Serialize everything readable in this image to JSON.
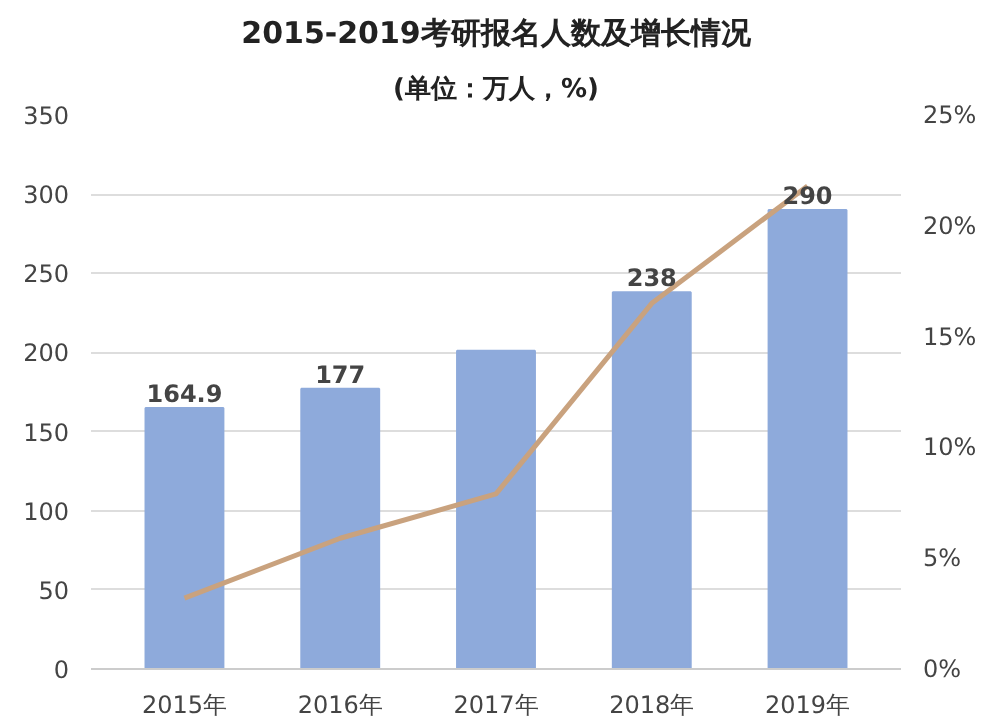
{
  "chart_data": {
    "type": "bar",
    "title": "2015-2019考研报名人数及增长情况",
    "subtitle": "(单位：万人，%)",
    "categories": [
      "2015年",
      "2016年",
      "2017年",
      "2018年",
      "2019年"
    ],
    "series": [
      {
        "color": "#8eaadb",
        "values": [
          164.9,
          177,
          201,
          238,
          290
        ],
        "value_labels": [
          "164.9",
          "177",
          null,
          "238",
          "290"
        ]
      },
      {
        "type": "line",
        "axis": "y2",
        "color": "#c9a27e",
        "values": [
          3.2,
          5.9,
          7.9,
          16.5,
          21.8
        ]
      }
    ],
    "ylim": [
      0,
      350
    ],
    "yticks": [
      0,
      50,
      100,
      150,
      200,
      250,
      300,
      350
    ],
    "y2lim": [
      0,
      25
    ],
    "y2ticks": [
      {
        "value": 0,
        "label": "0%"
      },
      {
        "value": 5,
        "label": "5%"
      },
      {
        "value": 10,
        "label": "10%"
      },
      {
        "value": 15,
        "label": "15%"
      },
      {
        "value": 20,
        "label": "20%"
      },
      {
        "value": 25,
        "label": "25%"
      }
    ],
    "grid": "y",
    "marker": "none",
    "line_style": "solid"
  }
}
